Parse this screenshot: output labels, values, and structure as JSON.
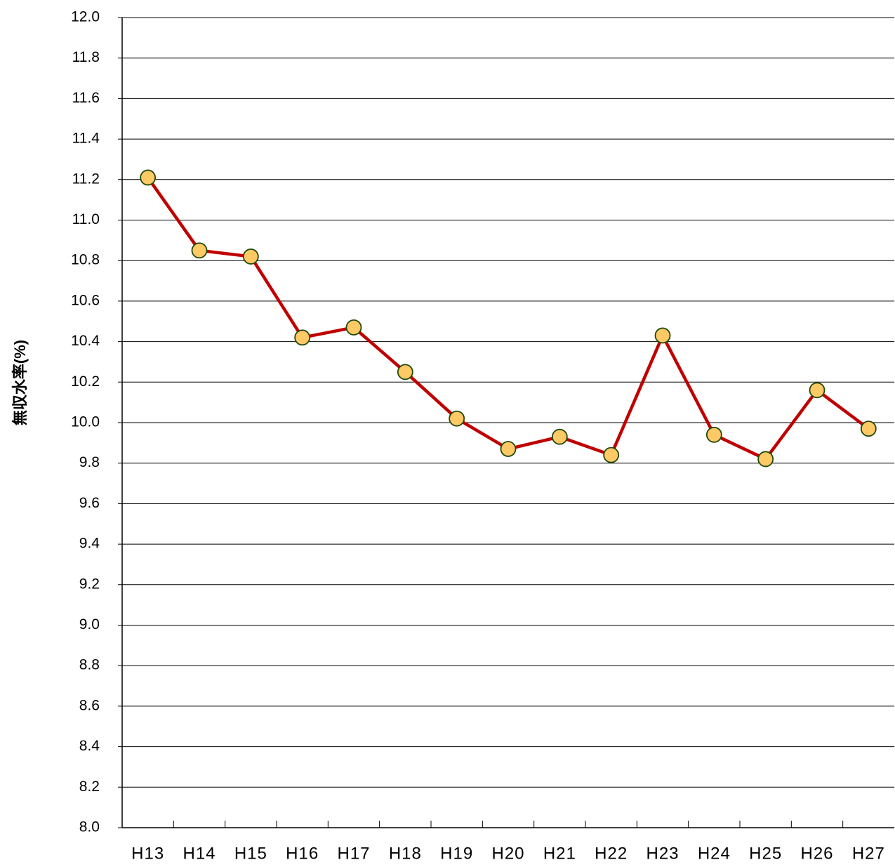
{
  "chart_data": {
    "type": "line",
    "y_label": "無収水率(%)",
    "categories": [
      "H13",
      "H14",
      "H15",
      "H16",
      "H17",
      "H18",
      "H19",
      "H20",
      "H21",
      "H22",
      "H23",
      "H24",
      "H25",
      "H26",
      "H27"
    ],
    "series": [
      {
        "color": "#c00000",
        "marker_color": "#ffc966",
        "values": [
          11.21,
          10.85,
          10.82,
          10.42,
          10.47,
          10.25,
          10.02,
          9.87,
          9.93,
          9.84,
          10.43,
          9.94,
          9.82,
          10.16,
          9.97
        ]
      }
    ],
    "ylim": [
      8,
      12
    ],
    "yticks": [
      {
        "value": 8,
        "label": "8.0"
      },
      8.2,
      8.4,
      8.6,
      8.8,
      {
        "value": 9,
        "label": "9.0"
      },
      9.2,
      9.4,
      9.6,
      9.8,
      {
        "value": 10,
        "label": "10.0"
      },
      10.2,
      10.4,
      10.6,
      10.8,
      {
        "value": 11,
        "label": "11.0"
      },
      11.2,
      11.4,
      11.6,
      11.8,
      {
        "value": 12,
        "label": "12.0"
      }
    ],
    "grid": true
  }
}
